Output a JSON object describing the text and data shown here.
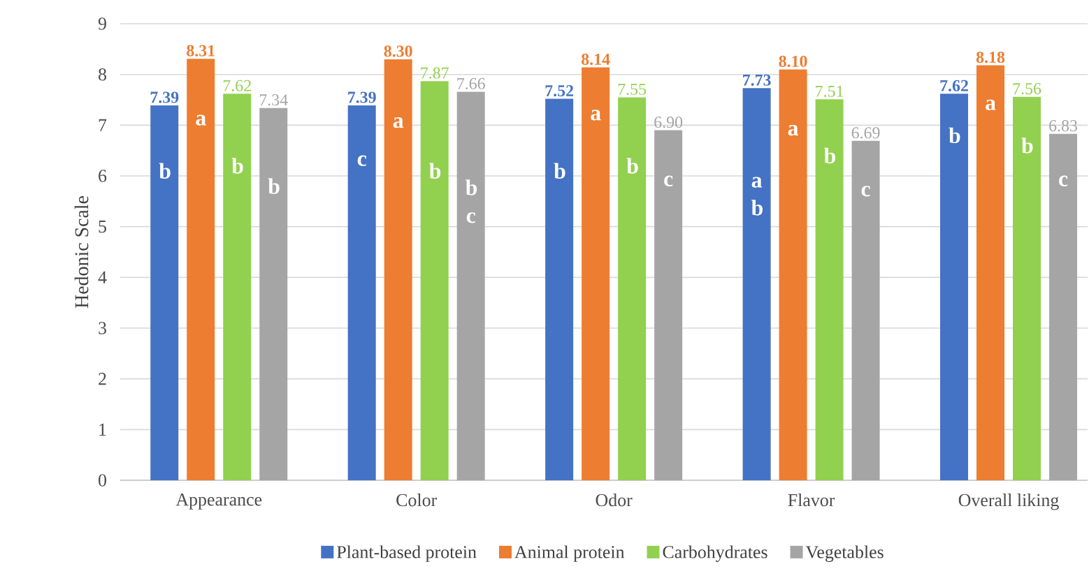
{
  "chart_data": {
    "type": "bar",
    "ylabel": "Hedonic Scale",
    "categories": [
      "Appearance",
      "Color",
      "Odor",
      "Flavor",
      "Overall liking"
    ],
    "series": [
      {
        "name": "Plant-based protein",
        "color": "#4472c4",
        "values": [
          7.39,
          7.39,
          7.52,
          7.73,
          7.62
        ],
        "value_labels": [
          "7.39",
          "7.39",
          "7.52",
          "7.73",
          "7.62"
        ]
      },
      {
        "name": "Animal protein",
        "color": "#ed7d31",
        "values": [
          8.31,
          8.3,
          8.14,
          8.1,
          8.18
        ],
        "value_labels": [
          "8.31",
          "8.30",
          "8.14",
          "8.10",
          "8.18"
        ]
      },
      {
        "name": "Carbohydrates",
        "color": "#92d050",
        "values": [
          7.62,
          7.87,
          7.55,
          7.51,
          7.56
        ],
        "value_labels": [
          "7.62",
          "7.87",
          "7.55",
          "7.51",
          "7.56"
        ]
      },
      {
        "name": "Vegetables",
        "color": "#a5a5a5",
        "values": [
          7.34,
          7.66,
          6.9,
          6.69,
          6.83
        ],
        "value_labels": [
          "7.34",
          "7.66",
          "6.90",
          "6.69",
          "6.83"
        ]
      }
    ],
    "annotations": [
      {
        "text": "b",
        "x": "Appearance",
        "y": 6.1
      },
      {
        "text": "a",
        "x": "Appearance",
        "y": 7.1
      },
      {
        "text": "b",
        "x": "Appearance",
        "y": 6.2
      },
      {
        "text": "b",
        "x": "Appearance",
        "y": 5.8
      },
      {
        "text": "c",
        "x": "Color",
        "y": 6.3
      },
      {
        "text": "a",
        "x": "Color",
        "y": 7.05
      },
      {
        "text": "b",
        "x": "Color",
        "y": 6.1
      },
      {
        "text": "b c",
        "x": "Color",
        "y": 5.5
      },
      {
        "text": "b",
        "x": "Odor",
        "y": 6.1
      },
      {
        "text": "a",
        "x": "Odor",
        "y": 7.2
      },
      {
        "text": "b",
        "x": "Odor",
        "y": 6.2
      },
      {
        "text": "c",
        "x": "Odor",
        "y": 5.9
      },
      {
        "text": "a b",
        "x": "Flavor",
        "y": 5.6
      },
      {
        "text": "a",
        "x": "Flavor",
        "y": 6.9
      },
      {
        "text": "b",
        "x": "Flavor",
        "y": 6.4
      },
      {
        "text": "c",
        "x": "Flavor",
        "y": 5.7
      },
      {
        "text": "b",
        "x": "Overall liking",
        "y": 6.8
      },
      {
        "text": "a",
        "x": "Overall liking",
        "y": 7.4
      },
      {
        "text": "b",
        "x": "Overall liking",
        "y": 6.6
      },
      {
        "text": "c",
        "x": "Overall liking",
        "y": 5.9
      }
    ],
    "ylim": [
      0,
      9
    ],
    "yticks": [
      0,
      1,
      2,
      3,
      4,
      5,
      6,
      7,
      8,
      9
    ],
    "grid": "y",
    "legend": "bottom"
  }
}
